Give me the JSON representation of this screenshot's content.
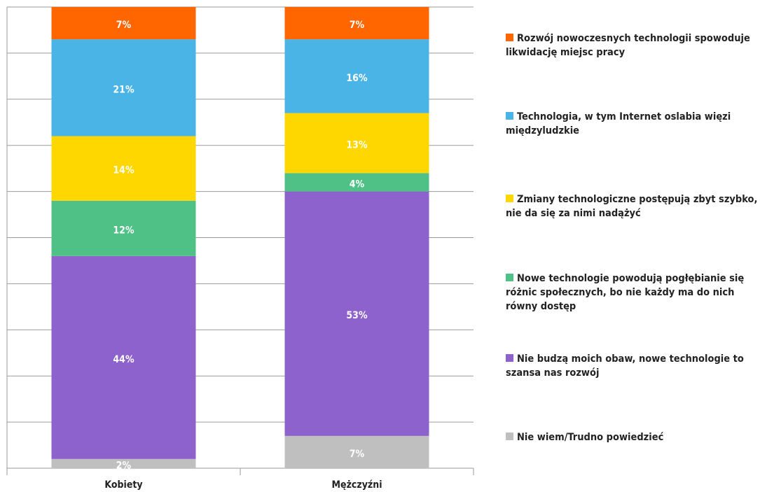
{
  "chart_data": {
    "type": "stacked_bar",
    "categories": [
      "Kobiety",
      "Mężczyźni"
    ],
    "ylim": [
      0,
      100
    ],
    "yticks": [
      0,
      10,
      20,
      30,
      40,
      50,
      60,
      70,
      80,
      90,
      100
    ],
    "grid": true,
    "series": [
      {
        "name": "Nie wiem/Trudno powiedzieć",
        "color": "#bfbfbf",
        "values": [
          2,
          7
        ],
        "value_labels": [
          "2%",
          "7%"
        ]
      },
      {
        "name": "Nie budzą moich obaw, nowe technologie to szansa nas rozwój",
        "color": "#8e62cc",
        "values": [
          44,
          53
        ],
        "value_labels": [
          "44%",
          "53%"
        ]
      },
      {
        "name": "Nowe technologie powodują pogłębianie się różnic społecznych, bo nie każdy ma do nich równy dostęp",
        "color": "#4fc187",
        "values": [
          12,
          4
        ],
        "value_labels": [
          "12%",
          "4%"
        ]
      },
      {
        "name": "Zmiany technologiczne postępują zbyt szybko, nie da się za nimi nadążyć",
        "color": "#ffd700",
        "values": [
          14,
          13
        ],
        "value_labels": [
          "14%",
          "13%"
        ]
      },
      {
        "name": "Technologia, w tym Internet oslabia więzi międzyludzkie",
        "color": "#4ab4e6",
        "values": [
          21,
          16
        ],
        "value_labels": [
          "21%",
          "16%"
        ]
      },
      {
        "name": "Rozwój nowoczesnych technologii spowoduje likwidację miejsc pracy",
        "color": "#ff6600",
        "values": [
          7,
          7
        ],
        "value_labels": [
          "7%",
          "7%"
        ]
      }
    ]
  }
}
